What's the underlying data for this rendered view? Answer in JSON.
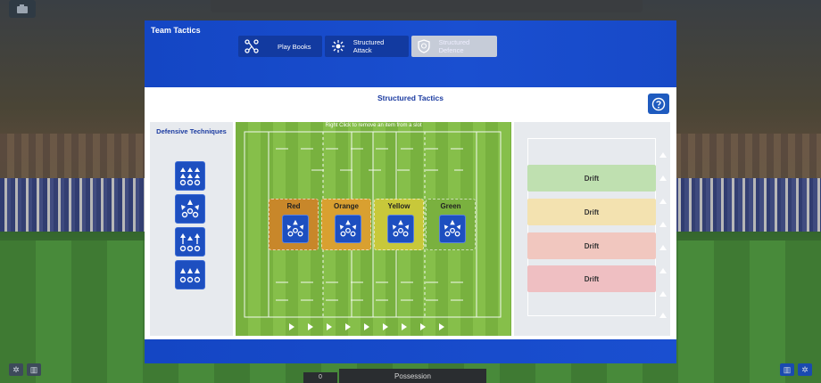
{
  "modal": {
    "title": "Team Tactics",
    "tabs": [
      {
        "label": "Play Books",
        "icon": "network-icon",
        "active": false
      },
      {
        "label": "Structured Attack",
        "icon": "burst-icon",
        "active": false
      },
      {
        "label": "Structured Defence",
        "icon": "shield-icon",
        "active": true
      }
    ],
    "section_title": "Structured Tactics",
    "help_icon": "question-icon"
  },
  "left_panel": {
    "title": "Defensive Techniques",
    "techniques": [
      {
        "icon": "triple-arrow-up-icon"
      },
      {
        "icon": "crown-fan-icon"
      },
      {
        "icon": "split-arrows-icon"
      },
      {
        "icon": "triple-wedge-icon"
      }
    ]
  },
  "pitch": {
    "hint": "Right Click to remove an item from a slot",
    "slots": [
      {
        "label": "Red",
        "color": "#c8872a"
      },
      {
        "label": "Orange",
        "color": "#d9a030"
      },
      {
        "label": "Yellow",
        "color": "#c8c83a"
      },
      {
        "label": "Green",
        "color": "#7ab13f"
      }
    ]
  },
  "right_panel": {
    "rows": [
      {
        "label": "Drift",
        "color": "#bfe0b0"
      },
      {
        "label": "Drift",
        "color": "#f3e2b0"
      },
      {
        "label": "Drift",
        "color": "#f1c7bf"
      },
      {
        "label": "Drift",
        "color": "#efbfc2"
      }
    ]
  },
  "hud": {
    "score": "0",
    "possession_label": "Possession"
  }
}
